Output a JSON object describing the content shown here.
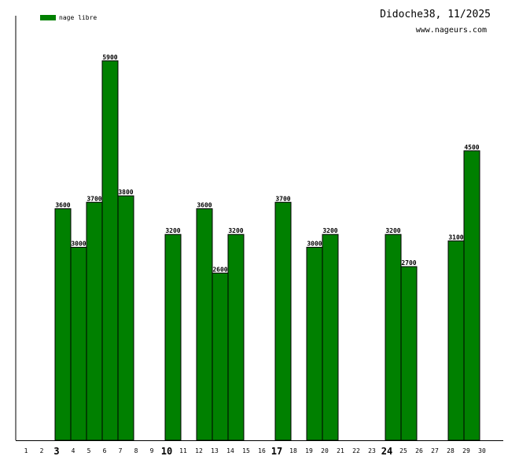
{
  "header": {
    "title": "Didoche38, 11/2025",
    "site": "www.nageurs.com"
  },
  "colors": {
    "bar": "#008000",
    "bar_stroke": "#000000",
    "axis": "#000000"
  },
  "chart_data": {
    "type": "bar",
    "title": "",
    "xlabel": "",
    "ylabel": "",
    "ylim": [
      0,
      6600
    ],
    "grid": false,
    "legend_position": "top-left",
    "categories": [
      "1",
      "2",
      "3",
      "4",
      "5",
      "6",
      "7",
      "8",
      "9",
      "10",
      "11",
      "12",
      "13",
      "14",
      "15",
      "16",
      "17",
      "18",
      "19",
      "20",
      "21",
      "22",
      "23",
      "24",
      "25",
      "26",
      "27",
      "28",
      "29",
      "30"
    ],
    "bold_categories": [
      "3",
      "10",
      "17",
      "24"
    ],
    "series": [
      {
        "name": "nage libre",
        "values": [
          null,
          null,
          3600,
          3000,
          3700,
          5900,
          3800,
          null,
          null,
          3200,
          null,
          3600,
          2600,
          3200,
          null,
          null,
          3700,
          null,
          3000,
          3200,
          null,
          null,
          null,
          3200,
          2700,
          null,
          null,
          3100,
          4500,
          null
        ],
        "labels": [
          "",
          "",
          "3600",
          "3000",
          "3700",
          "5900",
          "3800",
          "",
          "",
          "3200",
          "",
          "3600",
          "2600",
          "3200",
          "",
          "",
          "3700",
          "",
          "3000",
          "3200",
          "",
          "",
          "",
          "3200",
          "2700",
          "",
          "",
          "3100",
          "4500",
          ""
        ]
      }
    ]
  }
}
